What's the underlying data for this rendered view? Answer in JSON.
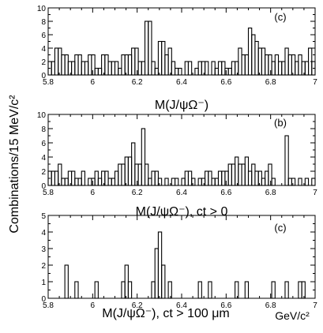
{
  "figure": {
    "ylabel": "Combinations/15 MeV/c²",
    "x_unit_label": "GeV/c²"
  },
  "chart_data": [
    {
      "type": "histogram",
      "panel_tag": "(c)",
      "xlabel": "M(J/ψΩ⁻)",
      "xlim": [
        5.8,
        7.0
      ],
      "ylim": [
        0,
        10
      ],
      "x_tick_labels": [
        "5.8",
        "6",
        "6.2",
        "6.4",
        "6.6",
        "6.8",
        "7"
      ],
      "y_tick_labels": [
        "0",
        "2",
        "4",
        "6",
        "8",
        "10"
      ],
      "bin_width": 0.015,
      "bin_edges_start": 5.8,
      "counts": [
        2,
        2,
        4,
        4,
        3,
        3,
        2,
        2,
        3,
        3,
        2,
        2,
        3,
        3,
        1,
        1,
        3,
        3,
        2,
        2,
        2,
        1,
        3,
        3,
        3,
        4,
        4,
        2,
        2,
        8,
        8,
        2,
        1,
        5,
        5,
        3,
        4,
        2,
        1,
        1,
        0,
        2,
        2,
        0,
        1,
        2,
        2,
        2,
        0,
        2,
        1,
        2,
        2,
        1,
        1,
        2,
        2,
        4,
        3,
        3,
        7,
        6,
        5,
        4,
        4,
        3,
        3,
        2,
        3,
        2,
        2,
        4,
        3,
        3,
        2,
        3,
        2,
        2,
        4,
        2,
        1,
        3,
        3,
        1,
        1,
        2,
        1,
        2,
        1,
        1,
        5,
        5,
        1,
        0,
        2,
        1,
        1,
        2,
        2,
        5,
        3,
        2,
        2,
        2,
        1,
        1,
        4,
        4,
        4
      ]
    },
    {
      "type": "histogram",
      "panel_tag": "(b)",
      "xlabel": "M(J/ψΩ⁻), ct > 0",
      "xlim": [
        5.8,
        7.0
      ],
      "ylim": [
        0,
        10
      ],
      "x_tick_labels": [
        "5.8",
        "6",
        "6.2",
        "6.4",
        "6.6",
        "6.8",
        "7"
      ],
      "y_tick_labels": [
        "0",
        "2",
        "4",
        "6",
        "8",
        "10"
      ],
      "bin_width": 0.015,
      "bin_edges_start": 5.8,
      "counts": [
        2,
        2,
        2,
        3,
        1,
        1,
        2,
        2,
        1,
        1,
        2,
        0,
        1,
        1,
        2,
        1,
        2,
        2,
        1,
        1,
        2,
        3,
        3,
        4,
        4,
        6,
        3,
        3,
        8,
        3,
        1,
        2,
        2,
        1,
        0,
        1,
        0,
        1,
        1,
        0,
        1,
        2,
        2,
        1,
        0,
        1,
        1,
        2,
        2,
        1,
        1,
        2,
        2,
        2,
        3,
        3,
        4,
        3,
        3,
        4,
        2,
        3,
        2,
        2,
        1,
        2,
        3,
        1,
        0,
        0,
        0,
        7,
        1,
        1,
        0,
        1,
        0,
        1,
        0,
        1,
        1,
        1,
        0,
        1,
        0,
        1,
        1,
        0,
        1,
        0,
        1,
        1,
        1,
        1,
        0,
        1,
        0,
        1,
        1,
        1,
        2,
        0,
        1,
        1,
        0,
        2,
        1,
        1,
        1,
        2
      ]
    },
    {
      "type": "histogram",
      "panel_tag": "(c)",
      "xlabel": "M(J/ψΩ⁻), ct > 100 μm",
      "xlim": [
        5.8,
        7.0
      ],
      "ylim": [
        0,
        5
      ],
      "x_tick_labels": [
        "5.8",
        "6",
        "6.2",
        "6.4",
        "6.6",
        "6.8",
        "7"
      ],
      "y_tick_labels": [
        "0",
        "1",
        "2",
        "3",
        "4",
        "5"
      ],
      "bin_width": 0.015,
      "bin_edges_start": 5.8,
      "counts": [
        0,
        0,
        0,
        0,
        0,
        2,
        0,
        0,
        1,
        0,
        0,
        0,
        0,
        0,
        1,
        0,
        0,
        0,
        0,
        0,
        0,
        0,
        1,
        2,
        1,
        0,
        0,
        0,
        0,
        0,
        0,
        1,
        3,
        4,
        2,
        0,
        1,
        0,
        0,
        0,
        0,
        0,
        0,
        0,
        0,
        1,
        0,
        0,
        1,
        0,
        0,
        0,
        0,
        0,
        0,
        0,
        1,
        0,
        0,
        1,
        0,
        0,
        0,
        0,
        0,
        0,
        0,
        1,
        0,
        0,
        0,
        1,
        0,
        0,
        0,
        1,
        1,
        0,
        0,
        0,
        1,
        1,
        1,
        0,
        0,
        0,
        0,
        3,
        1,
        1,
        0,
        0,
        1,
        0,
        0,
        0,
        0,
        0,
        0,
        0,
        0,
        0,
        0,
        1,
        1,
        0,
        1,
        1,
        0,
        1
      ]
    }
  ]
}
